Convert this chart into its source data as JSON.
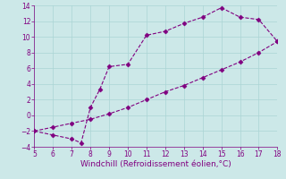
{
  "xlabel": "Windchill (Refroidissement éolien,°C)",
  "x_upper": [
    5,
    6,
    7,
    7.5,
    8,
    8.5,
    9,
    10,
    11,
    12,
    13,
    14,
    15,
    16,
    17,
    18
  ],
  "y_upper": [
    -2,
    -2.5,
    -3,
    -3.5,
    1,
    3.3,
    6.2,
    6.5,
    10.2,
    10.7,
    11.7,
    12.5,
    13.7,
    12.5,
    12.2,
    9.4
  ],
  "x_lower": [
    5,
    6,
    7,
    8,
    9,
    10,
    11,
    12,
    13,
    14,
    15,
    16,
    17,
    18
  ],
  "y_lower": [
    -2,
    -1.5,
    -1.0,
    -0.5,
    0.2,
    1.0,
    2.0,
    3.0,
    3.8,
    4.8,
    5.8,
    6.8,
    8.0,
    9.4
  ],
  "line_color": "#800080",
  "marker": "D",
  "marker_size": 2.5,
  "bg_color": "#cce8e8",
  "grid_color": "#aad4d4",
  "xlim": [
    5,
    18
  ],
  "ylim": [
    -4,
    14
  ],
  "xticks": [
    5,
    6,
    7,
    8,
    9,
    10,
    11,
    12,
    13,
    14,
    15,
    16,
    17,
    18
  ],
  "yticks": [
    -4,
    -2,
    0,
    2,
    4,
    6,
    8,
    10,
    12,
    14
  ],
  "tick_fontsize": 5.5,
  "xlabel_fontsize": 6.5
}
